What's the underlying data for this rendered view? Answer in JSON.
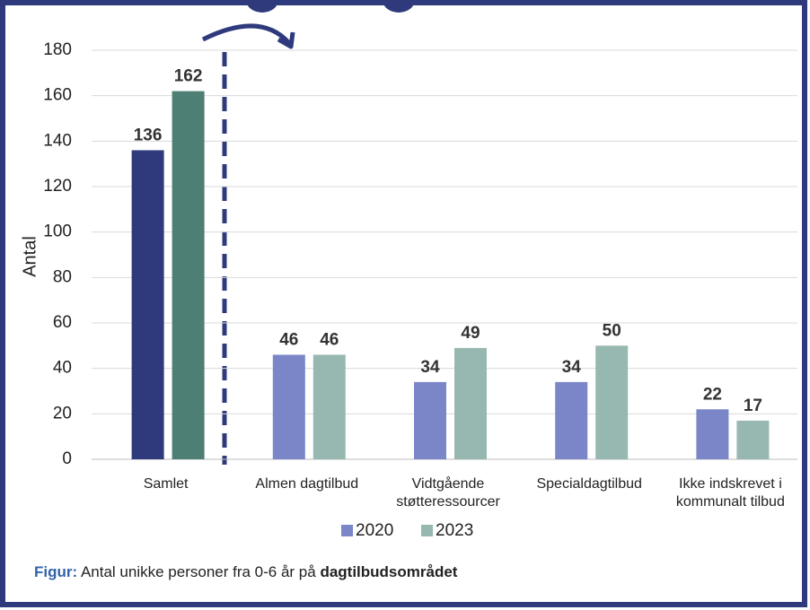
{
  "chart_data": {
    "type": "bar",
    "ylabel": "Antal",
    "categories": [
      "Samlet",
      "Almen dagtilbud",
      "Vidtgående støtteressourcer",
      "Specialdagtilbud",
      "Ikke indskrevet i kommunalt tilbud"
    ],
    "series": [
      {
        "name": "2020",
        "color": "#7b86c9",
        "colors": [
          "#2e3a7c",
          "#7b86c9",
          "#7b86c9",
          "#7b86c9",
          "#7b86c9"
        ],
        "values": [
          136,
          46,
          34,
          34,
          22
        ]
      },
      {
        "name": "2023",
        "color": "#97b8b0",
        "colors": [
          "#4e7f74",
          "#97b8b0",
          "#97b8b0",
          "#97b8b0",
          "#97b8b0"
        ],
        "values": [
          162,
          46,
          49,
          50,
          17
        ]
      }
    ],
    "ylim": [
      0,
      180
    ],
    "yticks": [
      0,
      20,
      40,
      60,
      80,
      100,
      120,
      140,
      160,
      180
    ],
    "grid": true,
    "legend": "bottom",
    "caption": {
      "label": "Figur:",
      "text": "Antal unikke personer fra 0-6 år på",
      "bold": "dagtilbudsområdet"
    }
  }
}
